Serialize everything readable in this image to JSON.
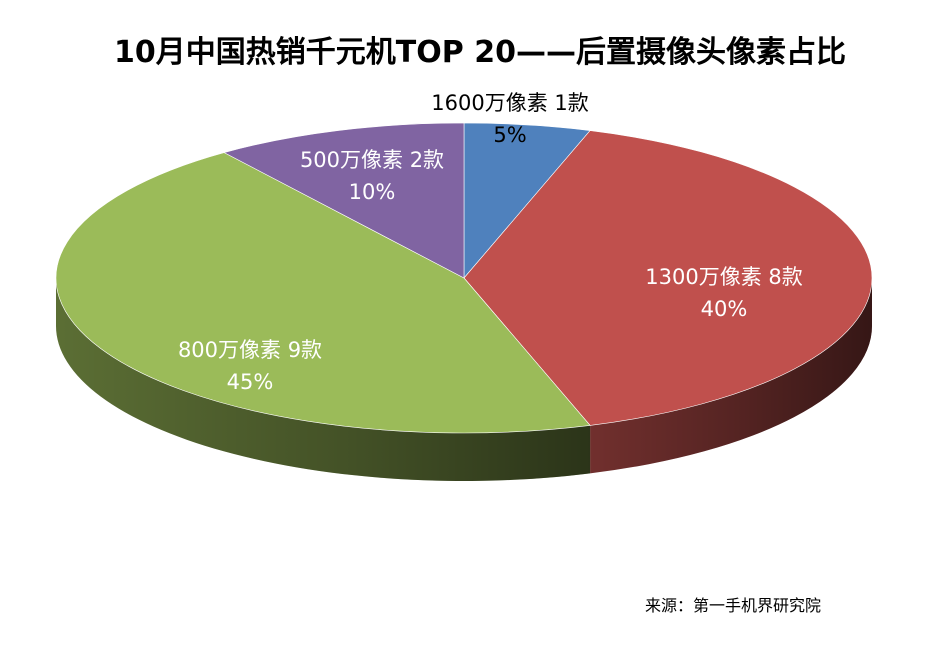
{
  "chart_data": {
    "type": "pie",
    "title": "10月中国热销千元机TOP 20——后置摄像头像素占比",
    "source": "来源：第一手机界研究院",
    "slices": [
      {
        "name": "1600万像素",
        "count_label": "1款",
        "value": 5,
        "percent_label": "5%",
        "color": "#4f81bd"
      },
      {
        "name": "1300万像素",
        "count_label": "8款",
        "value": 40,
        "percent_label": "40%",
        "color": "#c0504d"
      },
      {
        "name": "800万像素",
        "count_label": "9款",
        "value": 45,
        "percent_label": "45%",
        "color": "#9bbb59"
      },
      {
        "name": "500万像素",
        "count_label": "2款",
        "value": 10,
        "percent_label": "10%",
        "color": "#8064a2"
      }
    ]
  }
}
